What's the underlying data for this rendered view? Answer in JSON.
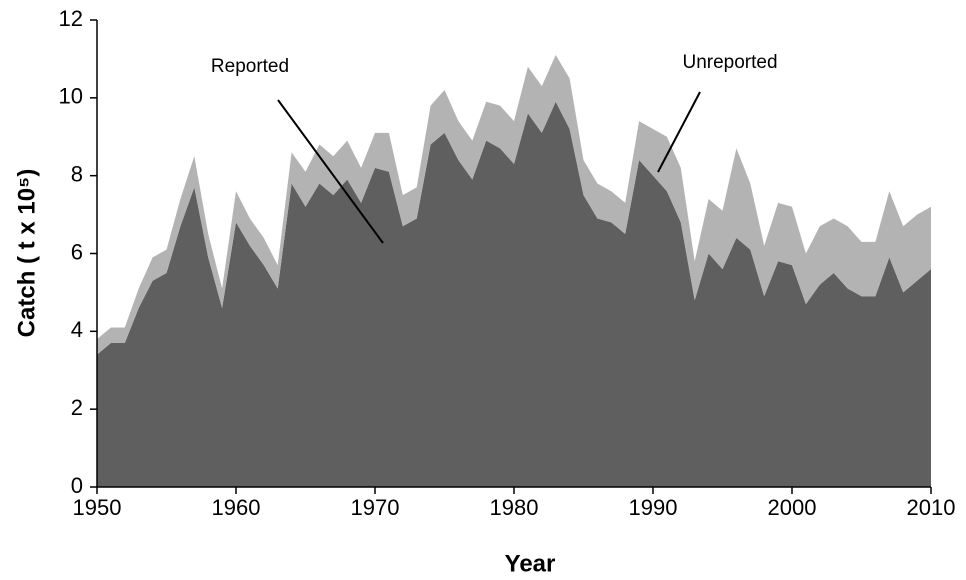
{
  "chart_data": {
    "type": "stacked_area",
    "xlabel": "Year",
    "ylabel": "Catch ( t x 10⁵)",
    "x": [
      1950,
      1951,
      1952,
      1953,
      1954,
      1955,
      1956,
      1957,
      1958,
      1959,
      1960,
      1961,
      1962,
      1963,
      1964,
      1965,
      1966,
      1967,
      1968,
      1969,
      1970,
      1971,
      1972,
      1973,
      1974,
      1975,
      1976,
      1977,
      1978,
      1979,
      1980,
      1981,
      1982,
      1983,
      1984,
      1985,
      1986,
      1987,
      1988,
      1989,
      1990,
      1991,
      1992,
      1993,
      1994,
      1995,
      1996,
      1997,
      1998,
      1999,
      2000,
      2001,
      2002,
      2003,
      2004,
      2005,
      2006,
      2007,
      2008,
      2009,
      2010
    ],
    "series": [
      {
        "name": "Reported",
        "color": "#5f5f5f",
        "values": [
          3.4,
          3.7,
          3.7,
          4.6,
          5.3,
          5.5,
          6.7,
          7.7,
          5.9,
          4.6,
          6.8,
          6.2,
          5.7,
          5.1,
          7.8,
          7.2,
          7.8,
          7.5,
          7.9,
          7.3,
          8.2,
          8.1,
          6.7,
          6.9,
          8.8,
          9.1,
          8.4,
          7.9,
          8.9,
          8.7,
          8.3,
          9.6,
          9.1,
          9.9,
          9.2,
          7.5,
          6.9,
          6.8,
          6.5,
          8.4,
          8.0,
          7.6,
          6.8,
          4.8,
          6.0,
          5.6,
          6.4,
          6.1,
          4.9,
          5.8,
          5.7,
          4.7,
          5.2,
          5.5,
          5.1,
          4.9,
          4.9,
          5.9,
          5.0,
          5.3,
          5.6
        ]
      },
      {
        "name": "Unreported",
        "color": "#b3b3b3",
        "values": [
          0.4,
          0.4,
          0.4,
          0.5,
          0.6,
          0.6,
          0.7,
          0.8,
          0.6,
          0.5,
          0.8,
          0.7,
          0.7,
          0.6,
          0.8,
          0.9,
          1.0,
          1.0,
          1.0,
          0.9,
          0.9,
          1.0,
          0.8,
          0.8,
          1.0,
          1.1,
          1.0,
          1.0,
          1.0,
          1.1,
          1.1,
          1.2,
          1.2,
          1.2,
          1.3,
          0.9,
          0.9,
          0.8,
          0.8,
          1.0,
          1.2,
          1.4,
          1.4,
          1.0,
          1.4,
          1.5,
          2.3,
          1.7,
          1.3,
          1.5,
          1.5,
          1.3,
          1.5,
          1.4,
          1.6,
          1.4,
          1.4,
          1.7,
          1.7,
          1.7,
          1.6
        ]
      }
    ],
    "xlim": [
      1950,
      2010
    ],
    "xticks": [
      1950,
      1960,
      1970,
      1980,
      1990,
      2000,
      2010
    ],
    "ylim": [
      0,
      12
    ],
    "yticks": [
      0,
      2,
      4,
      6,
      8,
      10,
      12
    ]
  }
}
